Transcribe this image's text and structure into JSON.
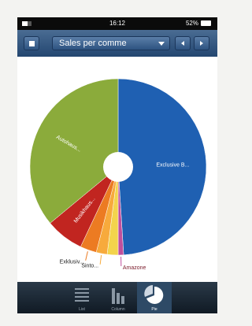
{
  "status_bar": {
    "time": "16:12",
    "battery": "52%"
  },
  "toolbar": {
    "selector": "Sales per comme"
  },
  "chart_data": {
    "type": "pie",
    "categories": [
      "Exclusive B...",
      "Amazone",
      null,
      "Sinto...",
      "Exklusiv...",
      "Musikhaus...",
      "Autohaus..."
    ],
    "values": [
      49,
      1,
      2,
      2,
      3,
      7,
      36
    ],
    "colors": [
      "#1f60b2",
      "#c04f9c",
      "#f3d44c",
      "#f7aa3c",
      "#ec7b22",
      "#c12520",
      "#8bab3b"
    ]
  },
  "tabs": [
    "List",
    "Column",
    "Pie"
  ]
}
